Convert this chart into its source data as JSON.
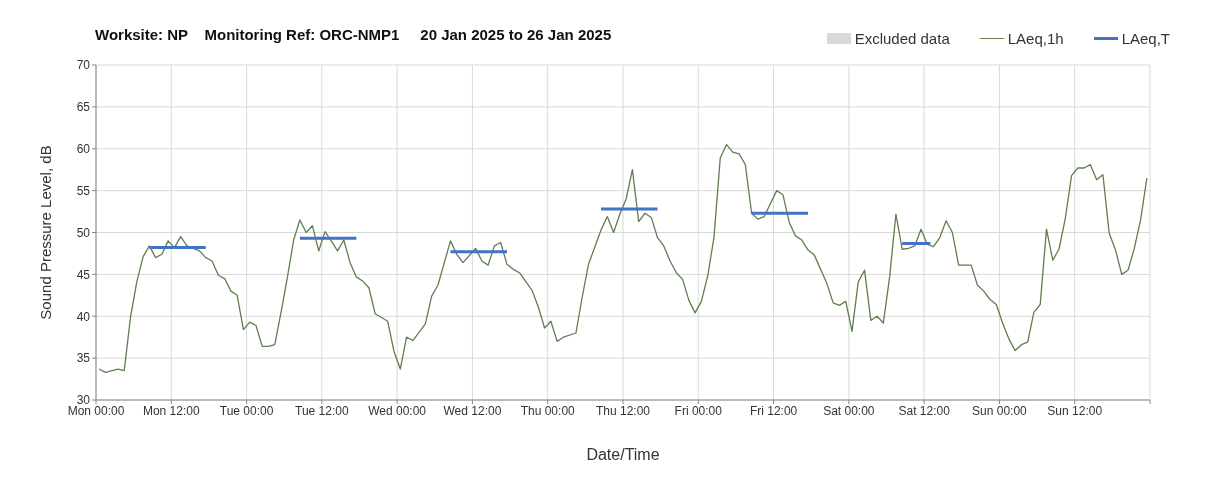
{
  "chart_data": {
    "type": "line",
    "title": "Worksite: NP    Monitoring Ref: ORC-NMP1     20 Jan 2025 to 26 Jan 2025",
    "xlabel": "Date/Time",
    "ylabel": "Sound Pressure Level, dB",
    "xlim": [
      "2025-01-20",
      "2025-01-27"
    ],
    "xticks": [
      {
        "value": "2025-01-20T00:00",
        "label": "Mon 00:00"
      },
      {
        "value": "2025-01-20T12:00",
        "label": "Mon 12:00"
      },
      {
        "value": "2025-01-21T00:00",
        "label": "Tue 00:00"
      },
      {
        "value": "2025-01-21T12:00",
        "label": "Tue 12:00"
      },
      {
        "value": "2025-01-22T00:00",
        "label": "Wed 00:00"
      },
      {
        "value": "2025-01-22T12:00",
        "label": "Wed 12:00"
      },
      {
        "value": "2025-01-23T00:00",
        "label": "Thu 00:00"
      },
      {
        "value": "2025-01-23T12:00",
        "label": "Thu 12:00"
      },
      {
        "value": "2025-01-24T00:00",
        "label": "Fri 00:00"
      },
      {
        "value": "2025-01-24T12:00",
        "label": "Fri 12:00"
      },
      {
        "value": "2025-01-25T00:00",
        "label": "Sat 00:00"
      },
      {
        "value": "2025-01-25T12:00",
        "label": "Sat 12:00"
      },
      {
        "value": "2025-01-26T00:00",
        "label": "Sun 00:00"
      },
      {
        "value": "2025-01-26T12:00",
        "label": "Sun 12:00"
      },
      {
        "value": "2025-01-27T00:00",
        "label": null
      }
    ],
    "ylim": [
      30,
      70
    ],
    "yticks": [
      30,
      35,
      40,
      45,
      50,
      55,
      60,
      65,
      70
    ],
    "grid": true,
    "legend": "top right",
    "series": [
      {
        "name": "Excluded data",
        "type": "area",
        "color": "#d9d9d9"
      },
      {
        "name": "LAeq,1h",
        "color": "#5f7f4f",
        "x": [
          "2025-01-20T00:30",
          "2025-01-20T01:30",
          "2025-01-20T03:30",
          "2025-01-20T04:30",
          "2025-01-20T05:30",
          "2025-01-20T06:30",
          "2025-01-20T07:30",
          "2025-01-20T08:30",
          "2025-01-20T09:30",
          "2025-01-20T10:30",
          "2025-01-20T11:30",
          "2025-01-20T12:30",
          "2025-01-20T13:30",
          "2025-01-20T14:30",
          "2025-01-20T16:30",
          "2025-01-20T17:30",
          "2025-01-20T18:30",
          "2025-01-20T19:30",
          "2025-01-20T20:30",
          "2025-01-20T21:30",
          "2025-01-20T22:30",
          "2025-01-20T23:30",
          "2025-01-21T00:30",
          "2025-01-21T01:30",
          "2025-01-21T02:30",
          "2025-01-21T03:30",
          "2025-01-21T04:30",
          "2025-01-21T05:30",
          "2025-01-21T06:30",
          "2025-01-21T07:30",
          "2025-01-21T08:30",
          "2025-01-21T09:30",
          "2025-01-21T10:30",
          "2025-01-21T11:30",
          "2025-01-21T12:30",
          "2025-01-21T13:30",
          "2025-01-21T14:30",
          "2025-01-21T15:30",
          "2025-01-21T16:30",
          "2025-01-21T17:30",
          "2025-01-21T18:30",
          "2025-01-21T19:30",
          "2025-01-21T20:30",
          "2025-01-21T22:30",
          "2025-01-21T23:30",
          "2025-01-22T00:30",
          "2025-01-22T01:30",
          "2025-01-22T02:30",
          "2025-01-22T04:30",
          "2025-01-22T05:30",
          "2025-01-22T06:30",
          "2025-01-22T08:30",
          "2025-01-22T09:30",
          "2025-01-22T10:30",
          "2025-01-22T12:30",
          "2025-01-22T13:30",
          "2025-01-22T14:30",
          "2025-01-22T15:30",
          "2025-01-22T16:30",
          "2025-01-22T17:30",
          "2025-01-22T18:30",
          "2025-01-22T19:30",
          "2025-01-22T21:30",
          "2025-01-22T22:30",
          "2025-01-22T23:30",
          "2025-01-23T00:30",
          "2025-01-23T01:30",
          "2025-01-23T02:30",
          "2025-01-23T04:30",
          "2025-01-23T05:30",
          "2025-01-23T06:30",
          "2025-01-23T08:30",
          "2025-01-23T09:30",
          "2025-01-23T10:30",
          "2025-01-23T11:30",
          "2025-01-23T12:30",
          "2025-01-23T13:30",
          "2025-01-23T14:30",
          "2025-01-23T15:30",
          "2025-01-23T16:30",
          "2025-01-23T17:30",
          "2025-01-23T18:30",
          "2025-01-23T19:30",
          "2025-01-23T20:30",
          "2025-01-23T21:30",
          "2025-01-23T22:30",
          "2025-01-23T23:30",
          "2025-01-24T00:30",
          "2025-01-24T01:30",
          "2025-01-24T02:30",
          "2025-01-24T03:30",
          "2025-01-24T04:30",
          "2025-01-24T05:30",
          "2025-01-24T06:30",
          "2025-01-24T07:30",
          "2025-01-24T08:30",
          "2025-01-24T09:30",
          "2025-01-24T10:30",
          "2025-01-24T12:30",
          "2025-01-24T13:30",
          "2025-01-24T14:30",
          "2025-01-24T15:30",
          "2025-01-24T16:30",
          "2025-01-24T17:30",
          "2025-01-24T18:30",
          "2025-01-24T20:30",
          "2025-01-24T21:30",
          "2025-01-24T22:30",
          "2025-01-24T23:30",
          "2025-01-25T00:30",
          "2025-01-25T01:30",
          "2025-01-25T02:30",
          "2025-01-25T03:30",
          "2025-01-25T04:30",
          "2025-01-25T05:30",
          "2025-01-25T06:30",
          "2025-01-25T07:30",
          "2025-01-25T08:30",
          "2025-01-25T09:30",
          "2025-01-25T10:30",
          "2025-01-25T11:30",
          "2025-01-25T12:30",
          "2025-01-25T13:30",
          "2025-01-25T14:30",
          "2025-01-25T15:30",
          "2025-01-25T16:30",
          "2025-01-25T17:30",
          "2025-01-25T19:30",
          "2025-01-25T20:30",
          "2025-01-25T21:30",
          "2025-01-25T22:30",
          "2025-01-25T23:30",
          "2025-01-26T00:30",
          "2025-01-26T01:30",
          "2025-01-26T02:30",
          "2025-01-26T03:30",
          "2025-01-26T04:30",
          "2025-01-26T05:30",
          "2025-01-26T06:30",
          "2025-01-26T07:30",
          "2025-01-26T08:30",
          "2025-01-26T09:30",
          "2025-01-26T10:30",
          "2025-01-26T11:30",
          "2025-01-26T12:30",
          "2025-01-26T13:30",
          "2025-01-26T14:30",
          "2025-01-26T15:30",
          "2025-01-26T16:30",
          "2025-01-26T17:30",
          "2025-01-26T18:30",
          "2025-01-26T19:30",
          "2025-01-26T20:30",
          "2025-01-26T21:30",
          "2025-01-26T22:30",
          "2025-01-26T23:30"
        ],
        "values": [
          33.7,
          33.3,
          33.7,
          33.5,
          39.9,
          44.1,
          47.1,
          48.4,
          47.0,
          47.4,
          49.0,
          48.2,
          49.5,
          48.4,
          47.8,
          47.0,
          46.6,
          44.9,
          44.5,
          43.0,
          42.5,
          38.4,
          39.3,
          38.9,
          36.4,
          36.4,
          36.6,
          40.5,
          44.6,
          49.1,
          51.5,
          50.0,
          50.8,
          47.8,
          50.1,
          49.0,
          47.8,
          49.1,
          46.4,
          44.7,
          44.2,
          43.4,
          40.3,
          39.4,
          35.8,
          33.7,
          37.5,
          37.1,
          39.1,
          42.4,
          43.7,
          49.0,
          47.4,
          46.4,
          48.1,
          46.6,
          46.1,
          48.4,
          48.8,
          46.2,
          45.6,
          45.2,
          43.1,
          41.1,
          38.6,
          39.4,
          37.0,
          37.5,
          38.0,
          42.3,
          46.2,
          50.3,
          51.9,
          50.0,
          52.2,
          54.0,
          57.5,
          51.3,
          52.3,
          51.8,
          49.4,
          48.4,
          46.6,
          45.2,
          44.4,
          41.9,
          40.4,
          41.8,
          44.8,
          49.4,
          58.9,
          60.5,
          59.6,
          59.4,
          58.1,
          52.3,
          51.6,
          51.9,
          55.0,
          54.5,
          51.2,
          49.6,
          49.1,
          47.9,
          47.3,
          43.9,
          41.6,
          41.3,
          41.8,
          38.2,
          44.1,
          45.5,
          39.5,
          40.0,
          39.2,
          44.7,
          52.2,
          48.0,
          48.1,
          48.4,
          50.4,
          48.6,
          48.3,
          49.4,
          51.4,
          50.0,
          46.1,
          46.1,
          43.7,
          43.0,
          42.0,
          41.4,
          39.2,
          37.3,
          35.9,
          36.6,
          36.9,
          40.5,
          41.4,
          50.4,
          46.7,
          48.0,
          51.7,
          56.8,
          57.7,
          57.7,
          58.1,
          56.3,
          56.9,
          49.9,
          47.9,
          45.0,
          45.5,
          48.1,
          51.5,
          56.5
        ]
      },
      {
        "name": "LAeq,T",
        "color": "#4472c4",
        "x": [
          "2025-01-20T08:30",
          "2025-01-20T17:30",
          "2025-01-21T00:00",
          "2025-01-21T08:30",
          "2025-01-21T17:30",
          "2025-01-22T00:00",
          "2025-01-22T08:30",
          "2025-01-22T17:30",
          "2025-01-23T00:00",
          "2025-01-23T08:30",
          "2025-01-23T17:30",
          "2025-01-24T00:00",
          "2025-01-24T08:30",
          "2025-01-24T17:30",
          "2025-01-25T00:00",
          "2025-01-25T08:30",
          "2025-01-25T13:00"
        ],
        "values": [
          48.2,
          48.2,
          null,
          49.3,
          49.3,
          null,
          47.7,
          47.7,
          null,
          52.8,
          52.8,
          null,
          52.3,
          52.3,
          null,
          48.7,
          48.7
        ]
      }
    ]
  }
}
